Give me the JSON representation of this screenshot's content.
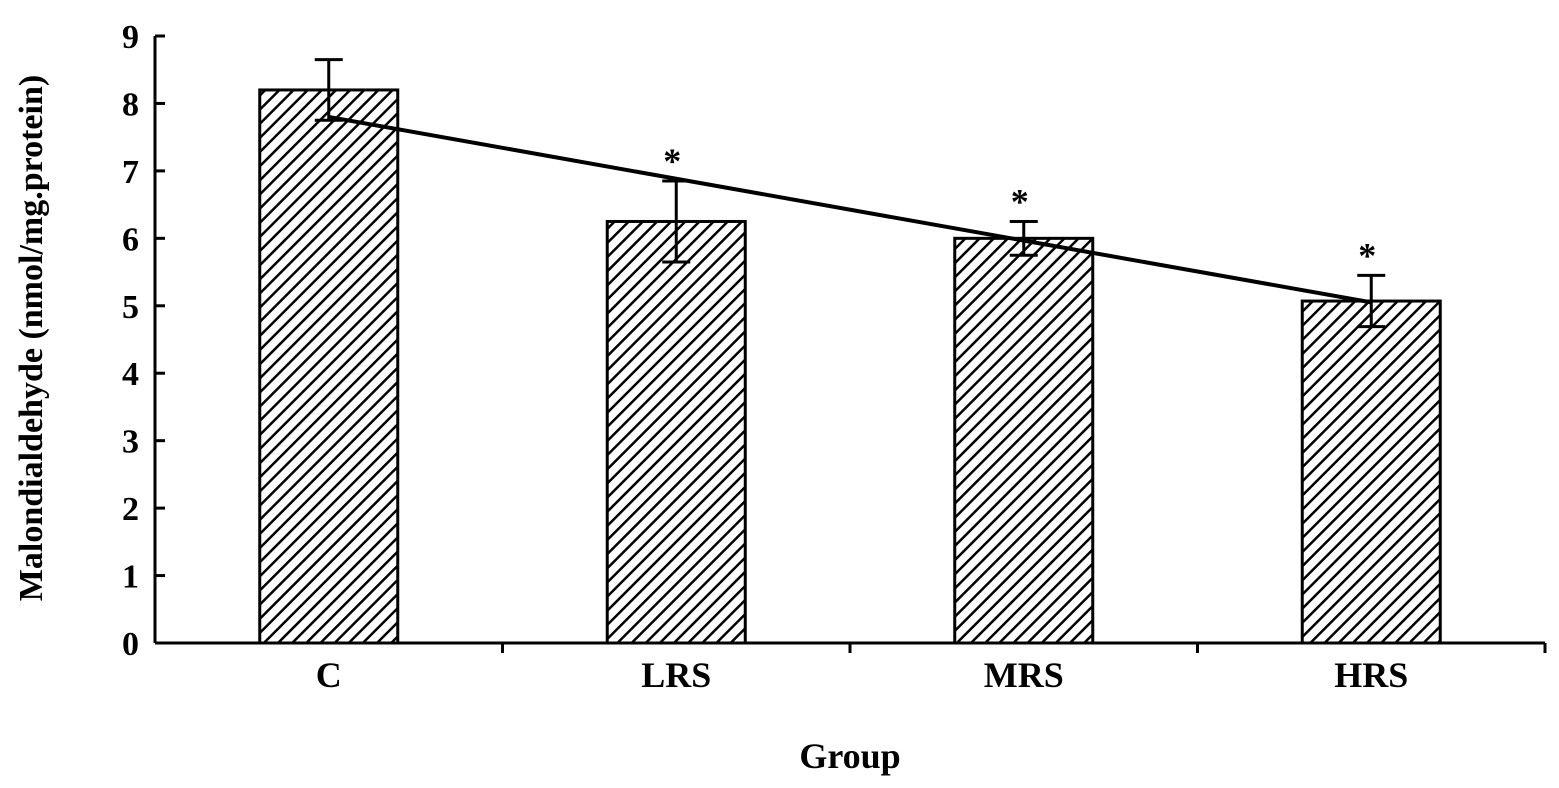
{
  "chart_data": {
    "type": "bar",
    "title": "",
    "xlabel": "Group",
    "ylabel": "Malondialdehyde (nmol/mg.protein)",
    "categories": [
      "C",
      "LRS",
      "MRS",
      "HRS"
    ],
    "values": [
      8.2,
      6.25,
      6.0,
      5.07
    ],
    "errors": [
      0.45,
      0.6,
      0.25,
      0.38
    ],
    "annotations": [
      "",
      "*",
      "*",
      "*"
    ],
    "ylim": [
      0,
      9
    ],
    "yticks": [
      "0",
      "1",
      "2",
      "3",
      "4",
      "5",
      "6",
      "7",
      "8",
      "9"
    ],
    "trendline": {
      "start": 7.8,
      "end": 5.05
    },
    "grid": false,
    "bar_fill": "diagonal-hatch",
    "colors": {
      "bar_stroke": "#000000",
      "hatch": "#000000",
      "background": "#ffffff"
    }
  }
}
